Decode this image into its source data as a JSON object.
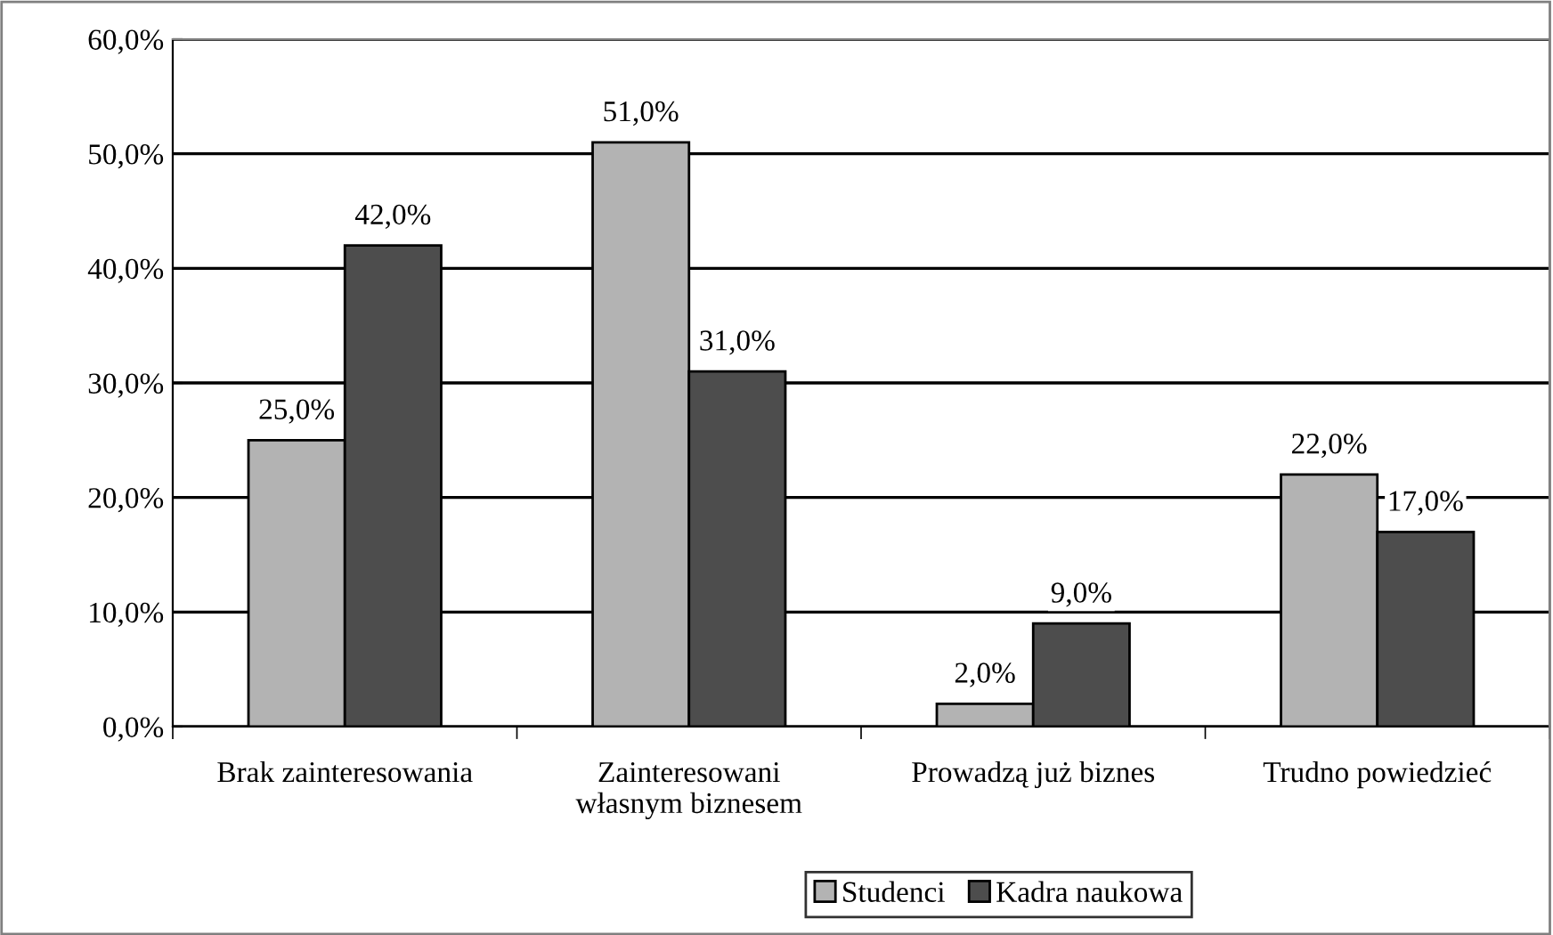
{
  "chart_data": {
    "type": "bar",
    "categories": [
      "Brak zainteresowania",
      "Zainteresowani\nwłasnym biznesem",
      "Prowadzą już biznes",
      "Trudno powiedzieć"
    ],
    "series": [
      {
        "name": "Studenci",
        "color": "#b3b3b3",
        "values": [
          25,
          51,
          2,
          22
        ],
        "value_labels": [
          "25,0%",
          "51,0%",
          "2,0%",
          "22,0%"
        ]
      },
      {
        "name": "Kadra naukowa",
        "color": "#4d4d4d",
        "values": [
          42,
          31,
          9,
          17
        ],
        "value_labels": [
          "42,0%",
          "31,0%",
          "9,0%",
          "17,0%"
        ]
      }
    ],
    "ylim": [
      0,
      60
    ],
    "yticks": [
      {
        "value": 0,
        "label": "0,0%"
      },
      {
        "value": 10,
        "label": "10,0%"
      },
      {
        "value": 20,
        "label": "20,0%"
      },
      {
        "value": 30,
        "label": "30,0%"
      },
      {
        "value": 40,
        "label": "40,0%"
      },
      {
        "value": 50,
        "label": "50,0%"
      },
      {
        "value": 60,
        "label": "60,0%"
      }
    ],
    "grid": "y",
    "legend": "bottom"
  }
}
